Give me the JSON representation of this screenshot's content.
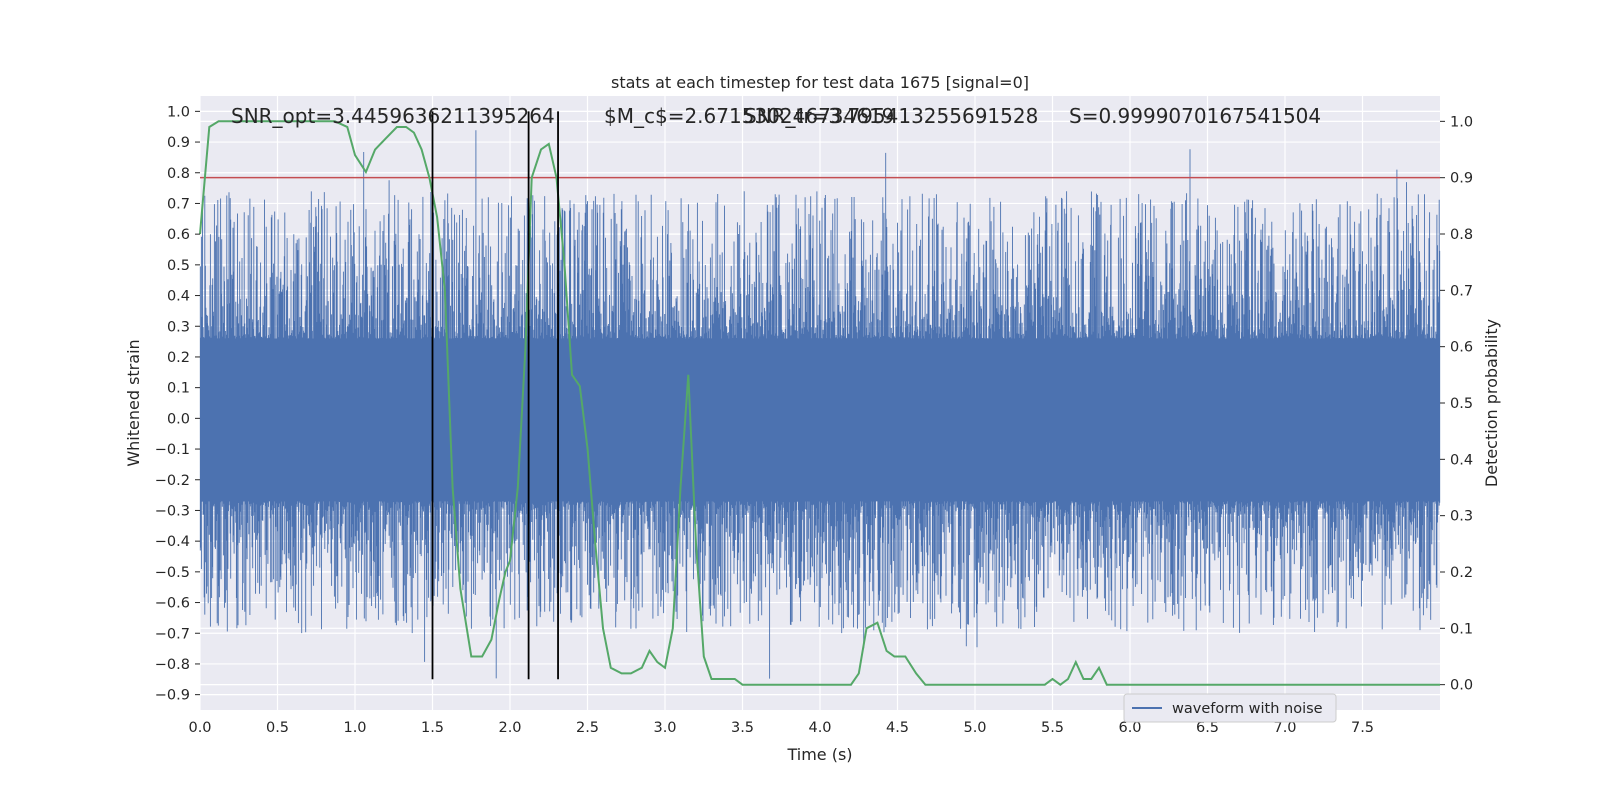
{
  "chart_data": {
    "type": "line",
    "title": "stats at each timestep for test data 1675 [signal=0]",
    "xlabel": "Time (s)",
    "ylabel": "Whitened strain",
    "y2label": "Detection probability",
    "xlim": [
      0.0,
      8.0
    ],
    "ylim": [
      -0.95,
      1.05
    ],
    "y2lim": [
      -0.045,
      1.045
    ],
    "xticks": [
      "0.0",
      "0.5",
      "1.0",
      "1.5",
      "2.0",
      "2.5",
      "3.0",
      "3.5",
      "4.0",
      "4.5",
      "5.0",
      "5.5",
      "6.0",
      "6.5",
      "7.0",
      "7.5"
    ],
    "yticks": [
      "1.0",
      "0.9",
      "0.8",
      "0.7",
      "0.6",
      "0.5",
      "0.4",
      "0.3",
      "0.2",
      "0.1",
      "0.0",
      "-0.1",
      "-0.2",
      "-0.3",
      "-0.4",
      "-0.5",
      "-0.6",
      "-0.7",
      "-0.8",
      "-0.9"
    ],
    "y2ticks": [
      "1.0",
      "0.9",
      "0.8",
      "0.7",
      "0.6",
      "0.5",
      "0.4",
      "0.3",
      "0.2",
      "0.1",
      "0.0"
    ],
    "grid": true,
    "legend_position": "lower right",
    "annotations": [
      "SNR_opt=3.4459636211395264",
      "$M_c$=2.671530246734619",
      "SNR_tr=3.795413255691528",
      "S=0.9999070167541504"
    ],
    "series": [
      {
        "name": "waveform with noise",
        "axis": "left",
        "color": "#4c72b0",
        "description_envelope": {
          "dense_band": [
            -0.27,
            0.26
          ],
          "typical_peaks": [
            -0.7,
            0.74
          ],
          "extreme_max": 1.0,
          "extreme_min": -0.85
        }
      },
      {
        "axis": "right",
        "color": "#55a868",
        "x": [
          0.0,
          0.06,
          0.12,
          0.2,
          0.3,
          0.4,
          0.5,
          0.6,
          0.7,
          0.8,
          0.87,
          0.95,
          1.0,
          1.07,
          1.13,
          1.2,
          1.27,
          1.33,
          1.38,
          1.43,
          1.48,
          1.53,
          1.58,
          1.63,
          1.68,
          1.75,
          1.82,
          1.88,
          1.93,
          1.97,
          2.0,
          2.05,
          2.1,
          2.14,
          2.2,
          2.25,
          2.3,
          2.35,
          2.4,
          2.45,
          2.5,
          2.55,
          2.6,
          2.65,
          2.72,
          2.78,
          2.85,
          2.9,
          2.95,
          3.0,
          3.05,
          3.1,
          3.15,
          3.2,
          3.25,
          3.3,
          3.35,
          3.45,
          3.5,
          3.6,
          3.7,
          3.8,
          3.9,
          4.0,
          4.1,
          4.2,
          4.25,
          4.3,
          4.37,
          4.43,
          4.48,
          4.55,
          4.62,
          4.68,
          4.75,
          4.85,
          4.95,
          5.05,
          5.15,
          5.25,
          5.35,
          5.45,
          5.5,
          5.55,
          5.6,
          5.65,
          5.7,
          5.75,
          5.8,
          5.85,
          5.9,
          6.0,
          6.2,
          6.5,
          6.8,
          7.0,
          7.15,
          7.3,
          7.5,
          7.7,
          8.0
        ],
        "values": [
          0.8,
          0.99,
          1.0,
          1.0,
          1.0,
          1.0,
          1.0,
          1.0,
          1.0,
          1.0,
          1.0,
          0.99,
          0.94,
          0.91,
          0.95,
          0.97,
          0.99,
          0.99,
          0.98,
          0.95,
          0.9,
          0.83,
          0.7,
          0.35,
          0.17,
          0.05,
          0.05,
          0.08,
          0.15,
          0.2,
          0.22,
          0.35,
          0.6,
          0.9,
          0.95,
          0.96,
          0.9,
          0.75,
          0.55,
          0.53,
          0.42,
          0.25,
          0.1,
          0.03,
          0.02,
          0.02,
          0.03,
          0.06,
          0.04,
          0.03,
          0.1,
          0.35,
          0.55,
          0.25,
          0.05,
          0.01,
          0.01,
          0.01,
          0.0,
          0.0,
          0.0,
          0.0,
          0.0,
          0.0,
          0.0,
          0.0,
          0.02,
          0.1,
          0.11,
          0.06,
          0.05,
          0.05,
          0.02,
          0.0,
          0.0,
          0.0,
          0.0,
          0.0,
          0.0,
          0.0,
          0.0,
          0.0,
          0.01,
          0.0,
          0.01,
          0.04,
          0.01,
          0.01,
          0.03,
          0.0,
          0.0,
          0.0,
          0.0,
          0.0,
          0.0,
          0.0,
          0.0,
          0.0,
          0.0,
          0.0,
          0.0
        ]
      }
    ],
    "threshold_line": {
      "axis": "right",
      "value": 0.9,
      "color": "#c44e52"
    },
    "vertical_lines": {
      "color": "#000000",
      "x": [
        1.5,
        2.12,
        2.31
      ],
      "y_range": [
        -0.85,
        1.0
      ]
    }
  }
}
